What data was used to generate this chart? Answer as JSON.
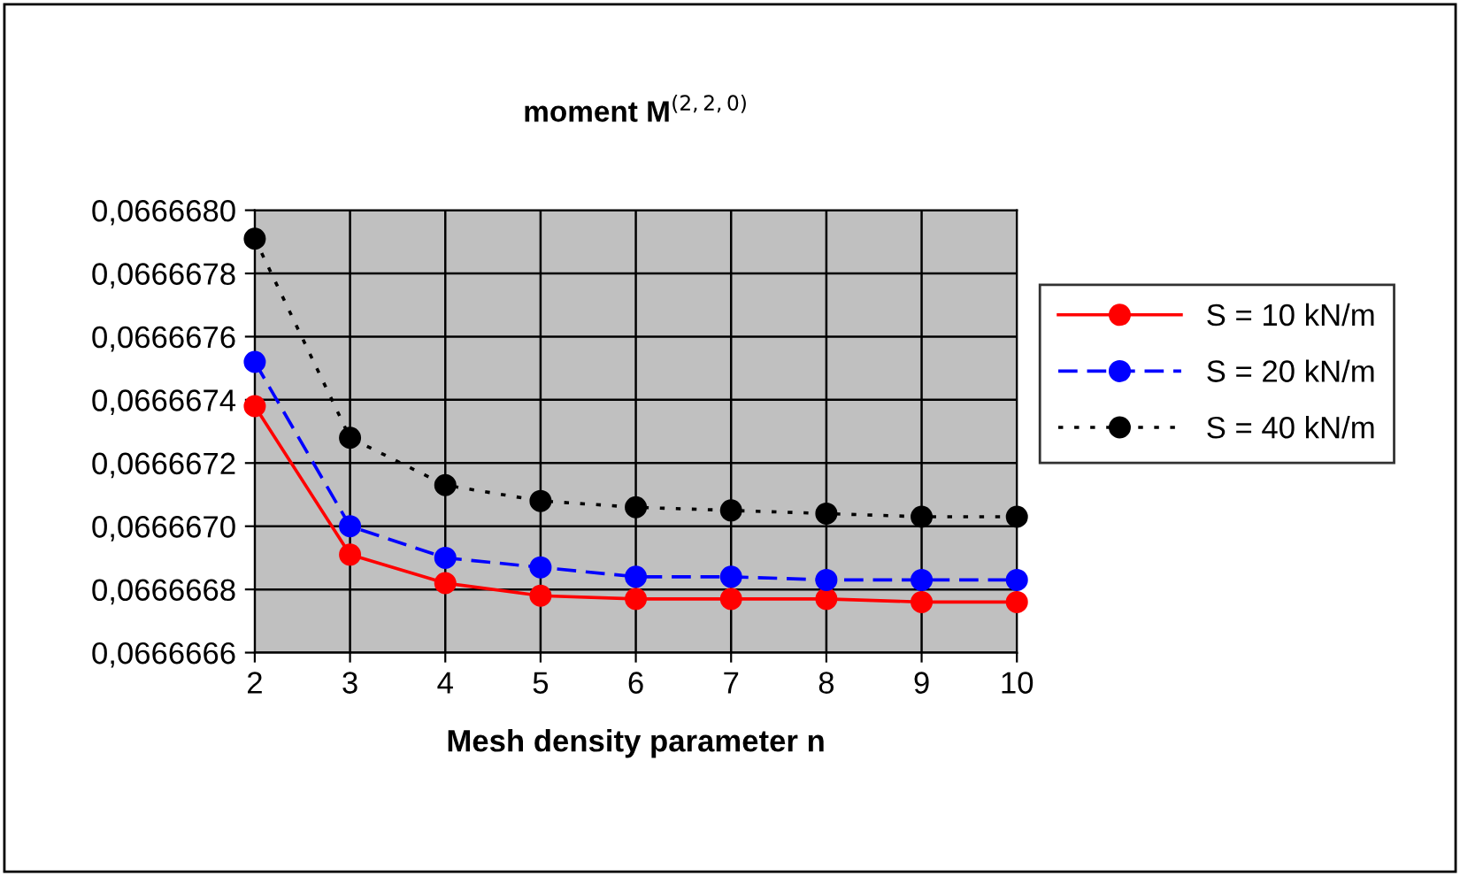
{
  "chart_data": {
    "type": "line",
    "title": "moment M$^{(2,2,0)}$",
    "xlabel": "Mesh density parameter n",
    "x": [
      2,
      3,
      4,
      5,
      6,
      7,
      8,
      9,
      10
    ],
    "series": [
      {
        "name": "S = 10 kN/m",
        "color": "#ff0000",
        "line_style": "solid",
        "values": [
          0.06666738,
          0.06666691,
          0.06666682,
          0.06666678,
          0.06666677,
          0.06666677,
          0.06666677,
          0.06666676,
          0.06666676
        ]
      },
      {
        "name": "S = 20 kN/m",
        "color": "#0000ff",
        "line_style": "dashed",
        "values": [
          0.06666752,
          0.066667,
          0.0666669,
          0.06666687,
          0.06666684,
          0.06666684,
          0.06666683,
          0.06666683,
          0.06666683
        ]
      },
      {
        "name": "S = 40 kN/m",
        "color": "#000000",
        "line_style": "dotted",
        "values": [
          0.06666791,
          0.06666728,
          0.06666713,
          0.06666708,
          0.06666706,
          0.06666705,
          0.06666704,
          0.06666703,
          0.06666703
        ]
      }
    ],
    "xlim": [
      2,
      10
    ],
    "xticks": [
      2,
      3,
      4,
      5,
      6,
      7,
      8,
      9,
      10
    ],
    "ylim": [
      0.0666666,
      0.066668
    ],
    "yticks": [
      {
        "value": 0.0666666,
        "label": "0,0666666"
      },
      {
        "value": 0.0666668,
        "label": "0,0666668"
      },
      {
        "value": 0.066667,
        "label": "0,0666670"
      },
      {
        "value": 0.0666672,
        "label": "0,0666672"
      },
      {
        "value": 0.0666674,
        "label": "0,0666674"
      },
      {
        "value": 0.0666676,
        "label": "0,0666676"
      },
      {
        "value": 0.0666678,
        "label": "0,0666678"
      },
      {
        "value": 0.066668,
        "label": "0,0666680"
      }
    ],
    "grid": true,
    "legend": "right",
    "marker": "circle"
  }
}
